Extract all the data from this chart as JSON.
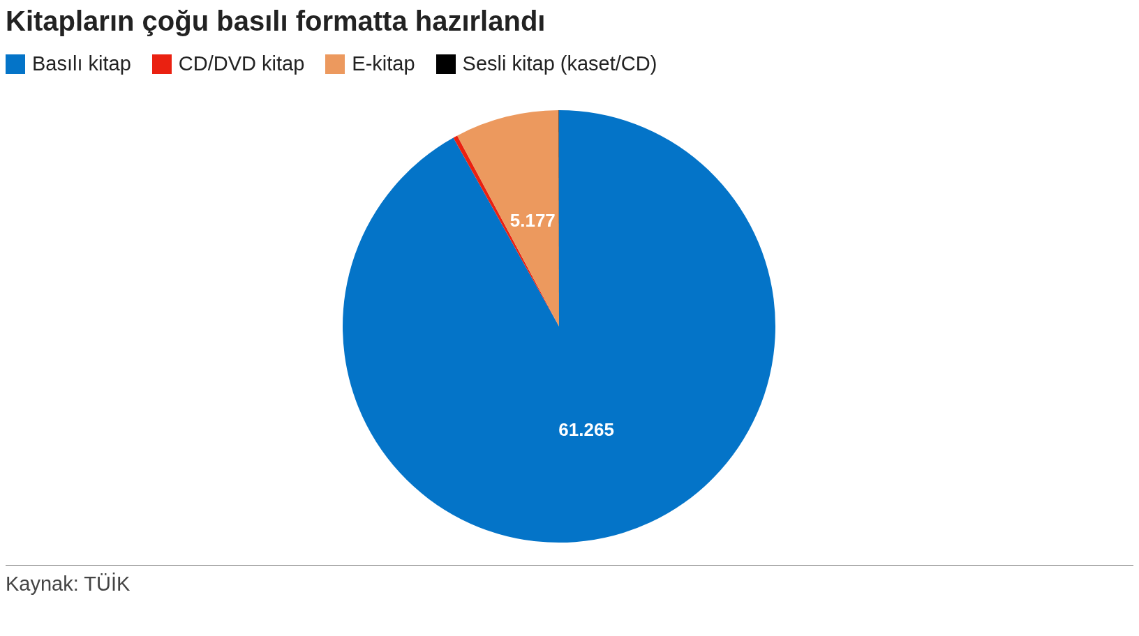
{
  "chart_data": {
    "type": "pie",
    "title": "Kitapların çoğu basılı formatta hazırlandı",
    "categories": [
      "Basılı kitap",
      "CD/DVD kitap",
      "E-kitap",
      "Sesli kitap (kaset/CD)"
    ],
    "values": [
      61265,
      220,
      5177,
      20
    ],
    "colors": [
      "#0474c8",
      "#ea2111",
      "#ec995e",
      "#000000"
    ],
    "value_labels": [
      "61.265",
      null,
      "5.177",
      null
    ],
    "legend": "top",
    "annotations": [
      "Kaynak: TÜİK"
    ]
  }
}
